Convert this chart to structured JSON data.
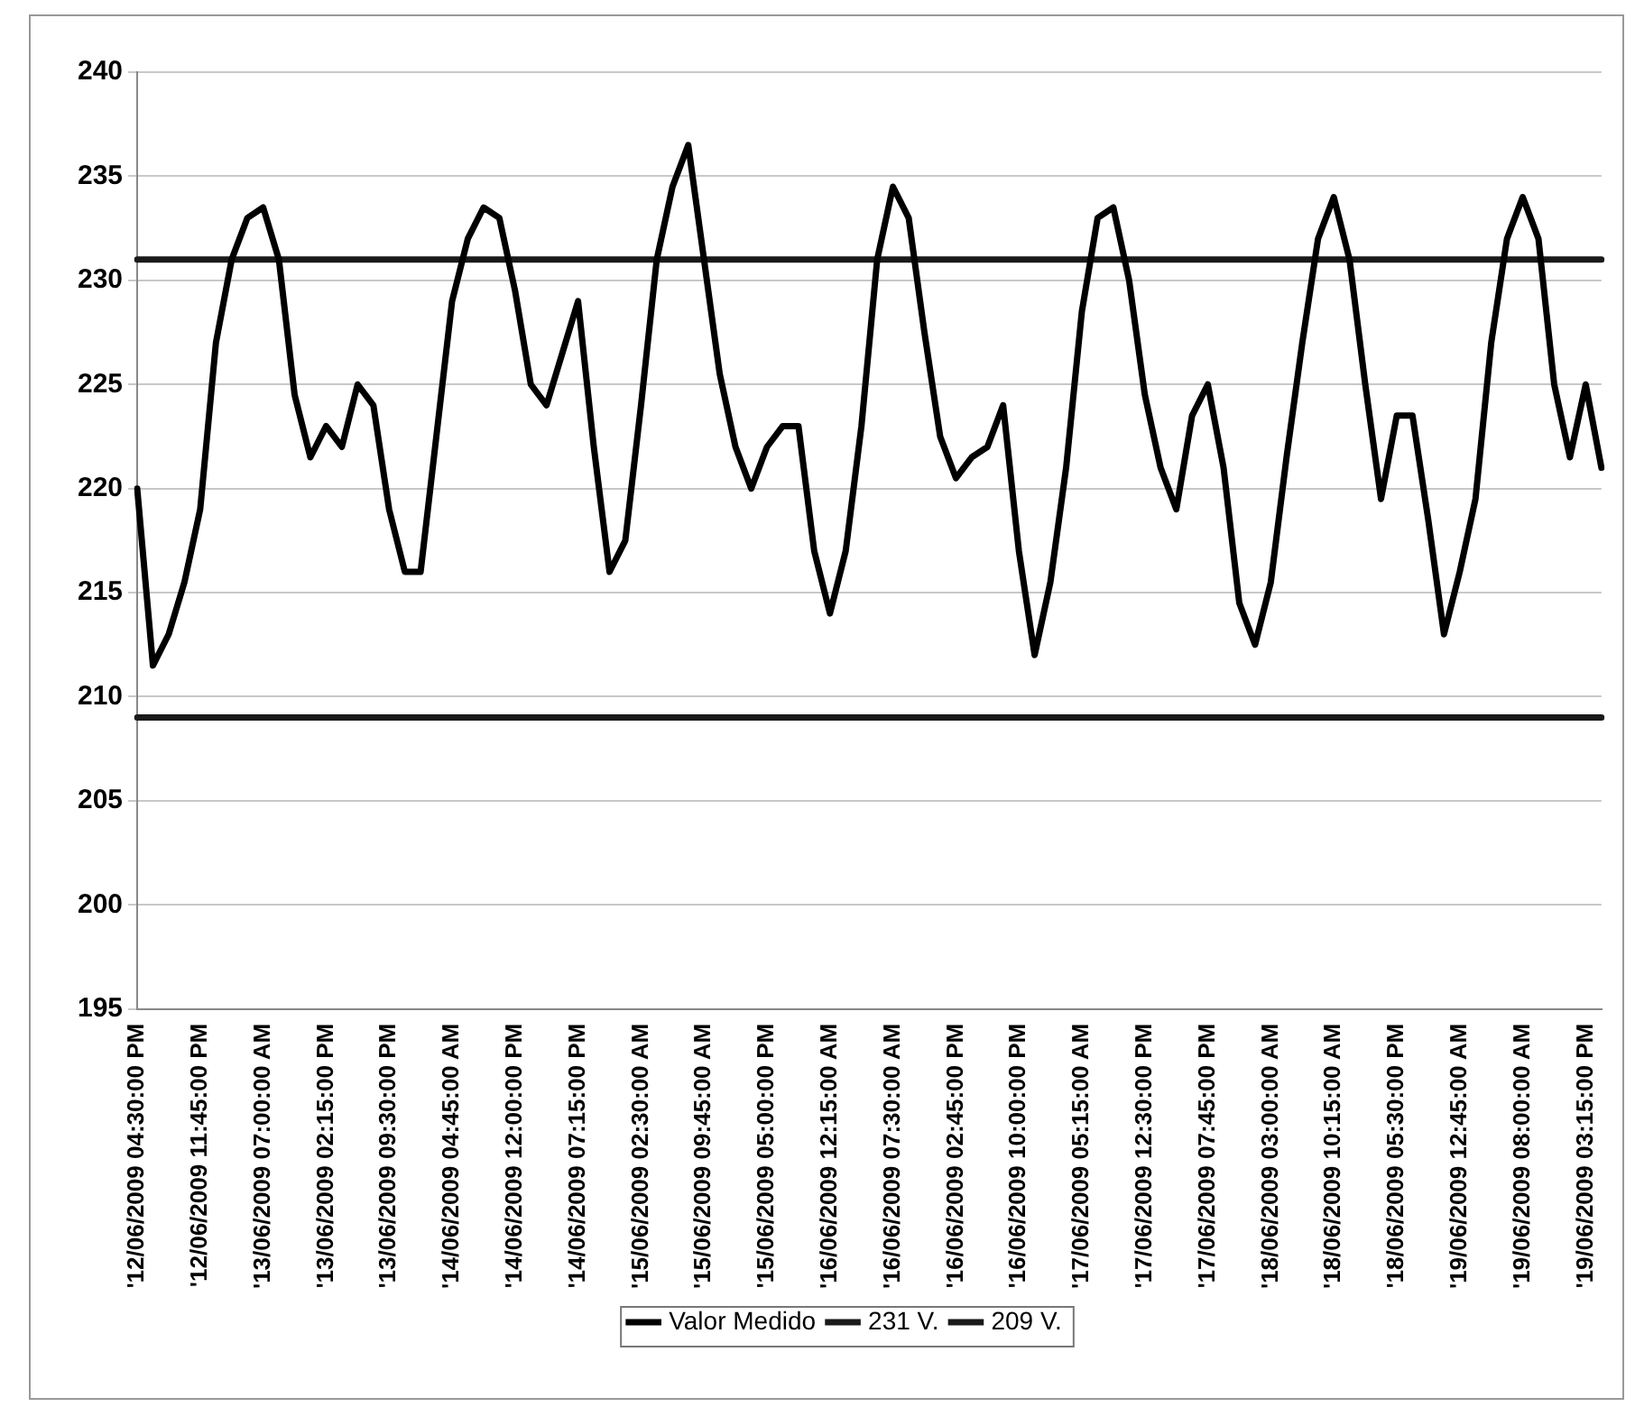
{
  "chart_data": {
    "type": "line",
    "categories": [
      "'12/06/2009 04:30:00 PM",
      null,
      null,
      null,
      "'12/06/2009 11:45:00 PM",
      null,
      null,
      null,
      "'13/06/2009 07:00:00 AM",
      null,
      null,
      null,
      "'13/06/2009 02:15:00 PM",
      null,
      null,
      null,
      "'13/06/2009 09:30:00 PM",
      null,
      null,
      null,
      "'14/06/2009 04:45:00 AM",
      null,
      null,
      null,
      "'14/06/2009 12:00:00 PM",
      null,
      null,
      null,
      "'14/06/2009 07:15:00 PM",
      null,
      null,
      null,
      "'15/06/2009 02:30:00 AM",
      null,
      null,
      null,
      "'15/06/2009 09:45:00 AM",
      null,
      null,
      null,
      "'15/06/2009 05:00:00 PM",
      null,
      null,
      null,
      "'16/06/2009 12:15:00 AM",
      null,
      null,
      null,
      "'16/06/2009 07:30:00 AM",
      null,
      null,
      null,
      "'16/06/2009 02:45:00 PM",
      null,
      null,
      null,
      "'16/06/2009 10:00:00 PM",
      null,
      null,
      null,
      "'17/06/2009 05:15:00 AM",
      null,
      null,
      null,
      "'17/06/2009 12:30:00 PM",
      null,
      null,
      null,
      "'17/06/2009 07:45:00 PM",
      null,
      null,
      null,
      "'18/06/2009 03:00:00 AM",
      null,
      null,
      null,
      "'18/06/2009 10:15:00 AM",
      null,
      null,
      null,
      "'18/06/2009 05:30:00 PM",
      null,
      null,
      null,
      "'19/06/2009 12:45:00 AM",
      null,
      null,
      null,
      "'19/06/2009 08:00:00 AM",
      null,
      null,
      null,
      "'19/06/2009 03:15:00 PM",
      null
    ],
    "series": [
      {
        "name": "Valor Medido",
        "color": "#000000",
        "values": [
          220,
          211.5,
          213,
          215.5,
          219,
          227,
          231,
          233,
          233.5,
          231,
          224.5,
          221.5,
          223,
          222,
          225,
          224,
          219,
          216,
          216,
          222.5,
          229,
          232,
          233.5,
          233,
          229.5,
          225,
          224,
          226.5,
          229,
          222,
          216,
          217.5,
          224,
          231,
          234.5,
          236.5,
          231,
          225.5,
          222,
          220,
          222,
          223,
          223,
          217,
          214,
          217,
          223,
          231,
          234.5,
          233,
          227.5,
          222.5,
          220.5,
          221.5,
          222,
          224,
          217,
          212,
          215.5,
          221,
          228.5,
          233,
          233.5,
          230,
          224.5,
          221,
          219,
          223.5,
          225,
          221,
          214.5,
          212.5,
          215.5,
          221.5,
          227,
          232,
          234,
          231,
          225,
          219.5,
          223.5,
          223.5,
          218.5,
          213,
          216,
          219.5,
          227,
          232,
          234,
          232,
          225,
          221.5,
          225,
          221
        ]
      },
      {
        "name": "231 V.",
        "color": "#1a1a1a",
        "values": [
          231,
          231,
          231,
          231,
          231,
          231,
          231,
          231,
          231,
          231,
          231,
          231,
          231,
          231,
          231,
          231,
          231,
          231,
          231,
          231,
          231,
          231,
          231,
          231,
          231,
          231,
          231,
          231,
          231,
          231,
          231,
          231,
          231,
          231,
          231,
          231,
          231,
          231,
          231,
          231,
          231,
          231,
          231,
          231,
          231,
          231,
          231,
          231,
          231,
          231,
          231,
          231,
          231,
          231,
          231,
          231,
          231,
          231,
          231,
          231,
          231,
          231,
          231,
          231,
          231,
          231,
          231,
          231,
          231,
          231,
          231,
          231,
          231,
          231,
          231,
          231,
          231,
          231,
          231,
          231,
          231,
          231,
          231,
          231,
          231,
          231,
          231,
          231,
          231,
          231,
          231,
          231,
          231,
          231
        ]
      },
      {
        "name": "209 V.",
        "color": "#1a1a1a",
        "values": [
          209,
          209,
          209,
          209,
          209,
          209,
          209,
          209,
          209,
          209,
          209,
          209,
          209,
          209,
          209,
          209,
          209,
          209,
          209,
          209,
          209,
          209,
          209,
          209,
          209,
          209,
          209,
          209,
          209,
          209,
          209,
          209,
          209,
          209,
          209,
          209,
          209,
          209,
          209,
          209,
          209,
          209,
          209,
          209,
          209,
          209,
          209,
          209,
          209,
          209,
          209,
          209,
          209,
          209,
          209,
          209,
          209,
          209,
          209,
          209,
          209,
          209,
          209,
          209,
          209,
          209,
          209,
          209,
          209,
          209,
          209,
          209,
          209,
          209,
          209,
          209,
          209,
          209,
          209,
          209,
          209,
          209,
          209,
          209,
          209,
          209,
          209,
          209,
          209,
          209,
          209,
          209,
          209,
          209
        ]
      }
    ],
    "ylim": [
      195,
      240
    ],
    "yticks": [
      195,
      200,
      205,
      210,
      215,
      220,
      225,
      230,
      235,
      240
    ],
    "grid": "y",
    "legend": "bottom",
    "marker": "none",
    "line_style": "solid"
  }
}
